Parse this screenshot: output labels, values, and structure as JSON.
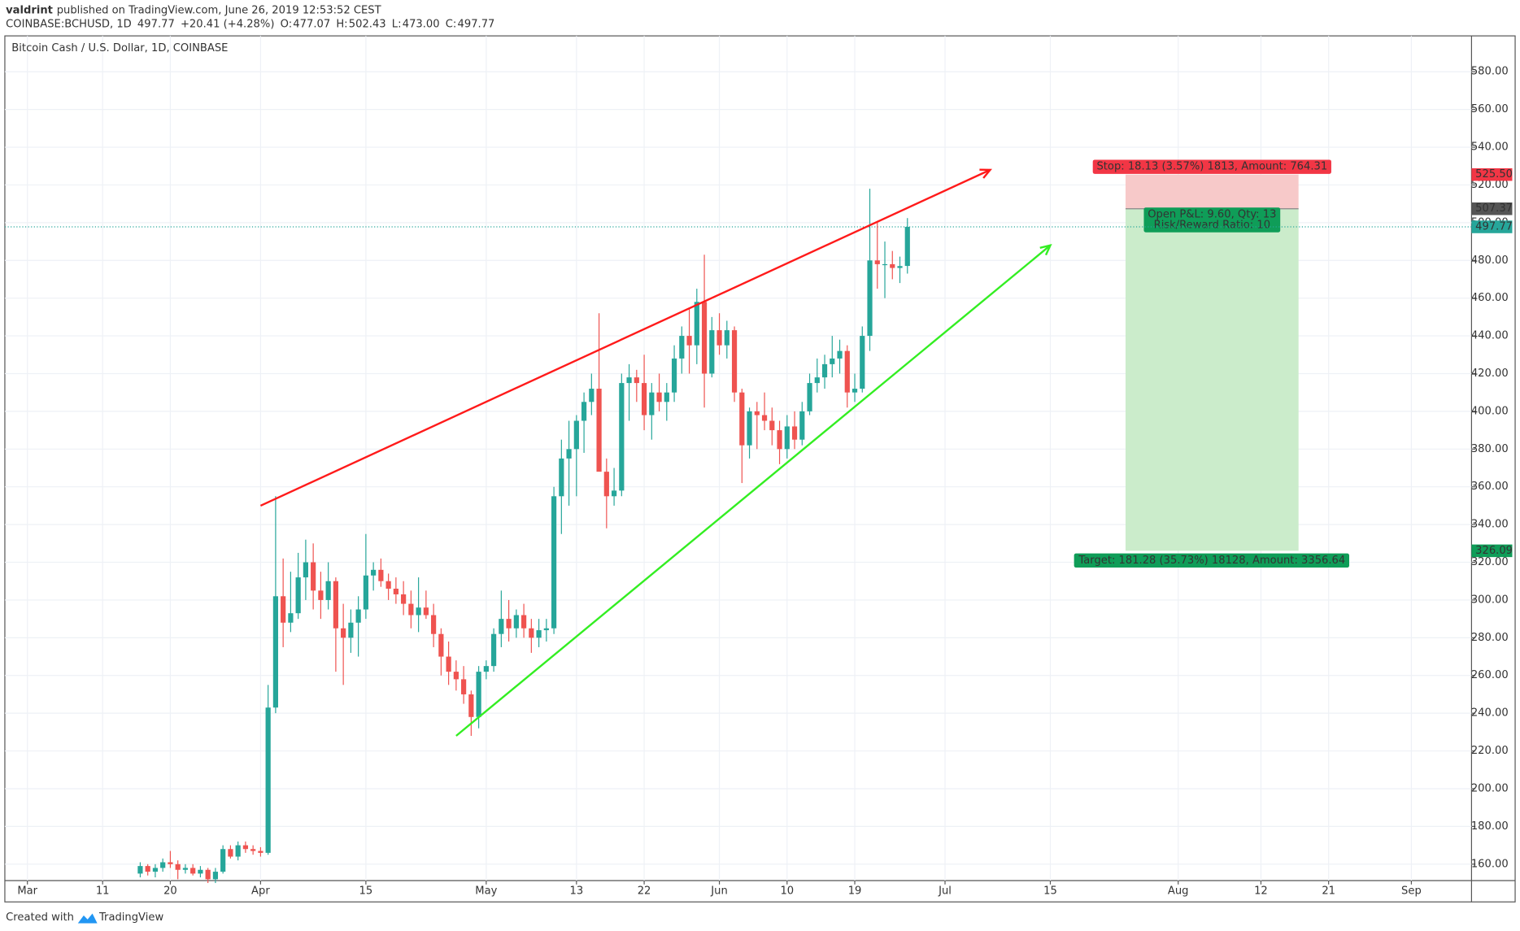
{
  "chart_data": {
    "type": "candlestick",
    "header": {
      "author": "valdrint",
      "published": "published on TradingView.com, June 26, 2019 12:53:52 CEST"
    },
    "quote": {
      "symbol": "COINBASE:BCHUSD, 1D",
      "last": "497.77",
      "change": "+20.41 (+4.28%)",
      "ohlc": [
        {
          "label": "O:",
          "value": "477.07"
        },
        {
          "label": "H:",
          "value": "502.43"
        },
        {
          "label": "L:",
          "value": "473.00"
        },
        {
          "label": "C:",
          "value": "497.77"
        }
      ]
    },
    "title": "Bitcoin Cash / U.S. Dollar, 1D, COINBASE",
    "footer": "Created with",
    "footer_brand": "TradingView",
    "up_color": "#26a69a",
    "down_color": "#ef5350",
    "grid": true,
    "x": [
      "2019-03-16",
      "2019-03-17",
      "2019-03-18",
      "2019-03-19",
      "2019-03-20",
      "2019-03-21",
      "2019-03-22",
      "2019-03-23",
      "2019-03-24",
      "2019-03-25",
      "2019-03-26",
      "2019-03-27",
      "2019-03-28",
      "2019-03-29",
      "2019-03-30",
      "2019-03-31",
      "2019-04-01",
      "2019-04-02",
      "2019-04-03",
      "2019-04-04",
      "2019-04-05",
      "2019-04-06",
      "2019-04-07",
      "2019-04-08",
      "2019-04-09",
      "2019-04-10",
      "2019-04-11",
      "2019-04-12",
      "2019-04-13",
      "2019-04-14",
      "2019-04-15",
      "2019-04-16",
      "2019-04-17",
      "2019-04-18",
      "2019-04-19",
      "2019-04-20",
      "2019-04-21",
      "2019-04-22",
      "2019-04-23",
      "2019-04-24",
      "2019-04-25",
      "2019-04-26",
      "2019-04-27",
      "2019-04-28",
      "2019-04-29",
      "2019-04-30",
      "2019-05-01",
      "2019-05-02",
      "2019-05-03",
      "2019-05-04",
      "2019-05-05",
      "2019-05-06",
      "2019-05-07",
      "2019-05-08",
      "2019-05-09",
      "2019-05-10",
      "2019-05-11",
      "2019-05-12",
      "2019-05-13",
      "2019-05-14",
      "2019-05-15",
      "2019-05-16",
      "2019-05-17",
      "2019-05-18",
      "2019-05-19",
      "2019-05-20",
      "2019-05-21",
      "2019-05-22",
      "2019-05-23",
      "2019-05-24",
      "2019-05-25",
      "2019-05-26",
      "2019-05-27",
      "2019-05-28",
      "2019-05-29",
      "2019-05-30",
      "2019-05-31",
      "2019-06-01",
      "2019-06-02",
      "2019-06-03",
      "2019-06-04",
      "2019-06-05",
      "2019-06-06",
      "2019-06-07",
      "2019-06-08",
      "2019-06-09",
      "2019-06-10",
      "2019-06-11",
      "2019-06-12",
      "2019-06-13",
      "2019-06-14",
      "2019-06-15",
      "2019-06-16",
      "2019-06-17",
      "2019-06-18",
      "2019-06-19",
      "2019-06-20",
      "2019-06-21",
      "2019-06-22",
      "2019-06-23",
      "2019-06-24",
      "2019-06-25",
      "2019-06-26"
    ],
    "open": [
      155,
      159,
      156,
      158,
      161,
      160,
      157,
      158,
      155,
      157,
      152,
      156,
      168,
      164,
      170,
      168,
      167,
      166,
      243,
      302,
      288,
      293,
      312,
      320,
      305,
      300,
      310,
      285,
      280,
      288,
      295,
      313,
      316,
      310,
      306,
      303,
      298,
      292,
      296,
      292,
      282,
      270,
      262,
      258,
      250,
      238,
      262,
      265,
      282,
      290,
      285,
      292,
      285,
      280,
      284,
      285,
      355,
      375,
      380,
      395,
      405,
      412,
      368,
      355,
      358,
      415,
      418,
      415,
      398,
      410,
      405,
      410,
      428,
      440,
      435,
      458,
      420,
      443,
      435,
      443,
      410,
      382,
      400,
      398,
      395,
      390,
      380,
      392,
      385,
      400,
      415,
      418,
      425,
      428,
      432,
      410,
      412,
      440,
      480,
      478,
      478,
      476,
      477.07
    ],
    "high": [
      161,
      160,
      160,
      163,
      167,
      162,
      160,
      160,
      159,
      158,
      158,
      170,
      170,
      172,
      172,
      170,
      169,
      255,
      355,
      322,
      315,
      325,
      332,
      330,
      315,
      320,
      312,
      298,
      295,
      302,
      335,
      320,
      322,
      314,
      312,
      310,
      305,
      312,
      305,
      298,
      285,
      278,
      268,
      265,
      252,
      265,
      268,
      285,
      305,
      300,
      295,
      298,
      290,
      290,
      290,
      360,
      385,
      395,
      398,
      410,
      420,
      452,
      375,
      370,
      420,
      425,
      422,
      430,
      415,
      420,
      415,
      435,
      445,
      455,
      465,
      483,
      450,
      452,
      448,
      445,
      412,
      402,
      405,
      410,
      402,
      395,
      398,
      400,
      405,
      420,
      428,
      430,
      440,
      438,
      435,
      420,
      445,
      518,
      500,
      490,
      485,
      482,
      502.43
    ],
    "low": [
      153,
      154,
      153,
      156,
      158,
      152,
      155,
      154,
      153,
      150,
      150,
      155,
      163,
      162,
      166,
      165,
      164,
      165,
      240,
      275,
      283,
      290,
      300,
      295,
      290,
      295,
      262,
      255,
      272,
      270,
      290,
      305,
      307,
      300,
      298,
      292,
      285,
      283,
      290,
      275,
      260,
      255,
      252,
      245,
      228,
      232,
      258,
      262,
      275,
      278,
      280,
      280,
      272,
      275,
      278,
      282,
      335,
      350,
      355,
      378,
      398,
      370,
      338,
      350,
      355,
      395,
      405,
      390,
      385,
      400,
      395,
      405,
      420,
      420,
      425,
      402,
      418,
      430,
      428,
      405,
      362,
      375,
      380,
      390,
      382,
      372,
      375,
      380,
      382,
      398,
      410,
      412,
      418,
      420,
      402,
      405,
      410,
      432,
      465,
      460,
      470,
      468,
      473.0
    ],
    "close": [
      159,
      156,
      158,
      161,
      160,
      157,
      158,
      155,
      157,
      152,
      156,
      168,
      164,
      170,
      168,
      167,
      166,
      243,
      302,
      288,
      293,
      312,
      320,
      305,
      300,
      310,
      285,
      280,
      288,
      295,
      313,
      316,
      310,
      306,
      303,
      298,
      292,
      296,
      292,
      282,
      270,
      262,
      258,
      250,
      238,
      262,
      265,
      282,
      290,
      285,
      292,
      285,
      280,
      284,
      285,
      355,
      375,
      380,
      395,
      405,
      412,
      368,
      355,
      358,
      415,
      418,
      415,
      398,
      410,
      405,
      410,
      428,
      440,
      435,
      458,
      420,
      443,
      435,
      443,
      410,
      382,
      400,
      398,
      395,
      390,
      380,
      392,
      385,
      400,
      415,
      418,
      425,
      428,
      432,
      410,
      412,
      440,
      480,
      478,
      478,
      476,
      477,
      497.77
    ],
    "xlim": [
      "2019-02-26",
      "2019-09-09"
    ],
    "xticks": [
      {
        "value": "2019-03-01",
        "label": "Mar"
      },
      {
        "value": "2019-03-11",
        "label": "11"
      },
      {
        "value": "2019-03-20",
        "label": "20"
      },
      {
        "value": "2019-04-01",
        "label": "Apr"
      },
      {
        "value": "2019-04-15",
        "label": "15"
      },
      {
        "value": "2019-05-01",
        "label": "May"
      },
      {
        "value": "2019-05-13",
        "label": "13"
      },
      {
        "value": "2019-05-22",
        "label": "22"
      },
      {
        "value": "2019-06-01",
        "label": "Jun"
      },
      {
        "value": "2019-06-10",
        "label": "10"
      },
      {
        "value": "2019-06-19",
        "label": "19"
      },
      {
        "value": "2019-07-01",
        "label": "Jul"
      },
      {
        "value": "2019-07-15",
        "label": "15"
      },
      {
        "value": "2019-08-01",
        "label": "Aug"
      },
      {
        "value": "2019-08-12",
        "label": "12"
      },
      {
        "value": "2019-08-21",
        "label": "21"
      },
      {
        "value": "2019-09-01",
        "label": "Sep"
      }
    ],
    "ylim": [
      151.3,
      599
    ],
    "yticks": [
      {
        "value": 160,
        "label": "160.00"
      },
      {
        "value": 180,
        "label": "180.00"
      },
      {
        "value": 200,
        "label": "200.00"
      },
      {
        "value": 220,
        "label": "220.00"
      },
      {
        "value": 240,
        "label": "240.00"
      },
      {
        "value": 260,
        "label": "260.00"
      },
      {
        "value": 280,
        "label": "280.00"
      },
      {
        "value": 300,
        "label": "300.00"
      },
      {
        "value": 320,
        "label": "320.00"
      },
      {
        "value": 340,
        "label": "340.00"
      },
      {
        "value": 360,
        "label": "360.00"
      },
      {
        "value": 380,
        "label": "380.00"
      },
      {
        "value": 400,
        "label": "400.00"
      },
      {
        "value": 420,
        "label": "420.00"
      },
      {
        "value": 440,
        "label": "440.00"
      },
      {
        "value": 460,
        "label": "460.00"
      },
      {
        "value": 480,
        "label": "480.00"
      },
      {
        "value": 500,
        "label": "500.00"
      },
      {
        "value": 520,
        "label": "520.00"
      },
      {
        "value": 540,
        "label": "540.00"
      },
      {
        "value": 560,
        "label": "560.00"
      },
      {
        "value": 580,
        "label": "580.00"
      }
    ],
    "trend_lines": [
      {
        "color": "#ff1a1a",
        "x": [
          "2019-04-01",
          "2019-07-07"
        ],
        "y": [
          350,
          528
        ]
      },
      {
        "color": "#33ee22",
        "x": [
          "2019-04-27",
          "2019-07-15"
        ],
        "y": [
          228,
          488
        ]
      }
    ],
    "price_labels": [
      {
        "value": 525.5,
        "label": "525.50",
        "color": "#f23645"
      },
      {
        "value": 507.37,
        "label": "507.37",
        "color": "#555555"
      },
      {
        "value": 497.77,
        "label": "497.77",
        "color": "#26a69a"
      },
      {
        "value": 326.09,
        "label": "326.09",
        "color": "#0f9d58"
      }
    ],
    "position": {
      "x": [
        "2019-07-25",
        "2019-08-17"
      ],
      "stop_text": "Stop: 18.13 (3.57%) 1813, Amount: 764.31",
      "pnl_text": "Open P&L: 9.60, Qty: 13",
      "ratio_text": "Risk/Reward Ratio: 10",
      "target_text": "Target: 181.28 (35.73%) 18128, Amount: 3356.64"
    }
  }
}
